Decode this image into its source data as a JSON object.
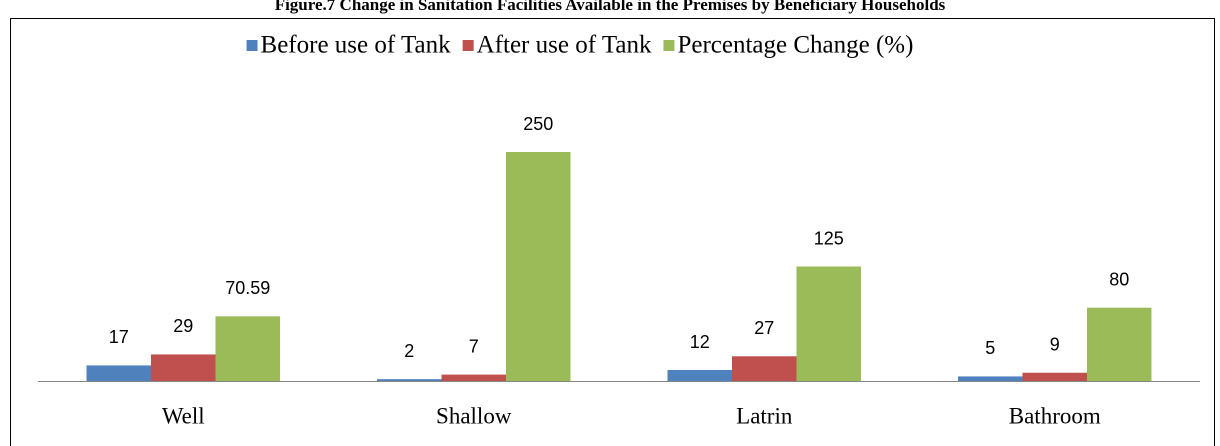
{
  "chart_data": {
    "type": "bar",
    "title": "Figure.7 Change in Sanitation Facilities Available in the Premises by Beneficiary Households",
    "categories": [
      "Well",
      "Shallow",
      "Latrin",
      "Bathroom"
    ],
    "series": [
      {
        "name": "Before use of Tank",
        "color": "#4f81bd",
        "values": [
          17,
          2,
          12,
          5
        ]
      },
      {
        "name": "After use of Tank",
        "color": "#c0504d",
        "values": [
          29,
          7,
          27,
          9
        ]
      },
      {
        "name": "Percentage Change (%)",
        "color": "#9bbb59",
        "values": [
          70.59,
          250,
          125,
          80
        ]
      }
    ],
    "legend": "top"
  }
}
